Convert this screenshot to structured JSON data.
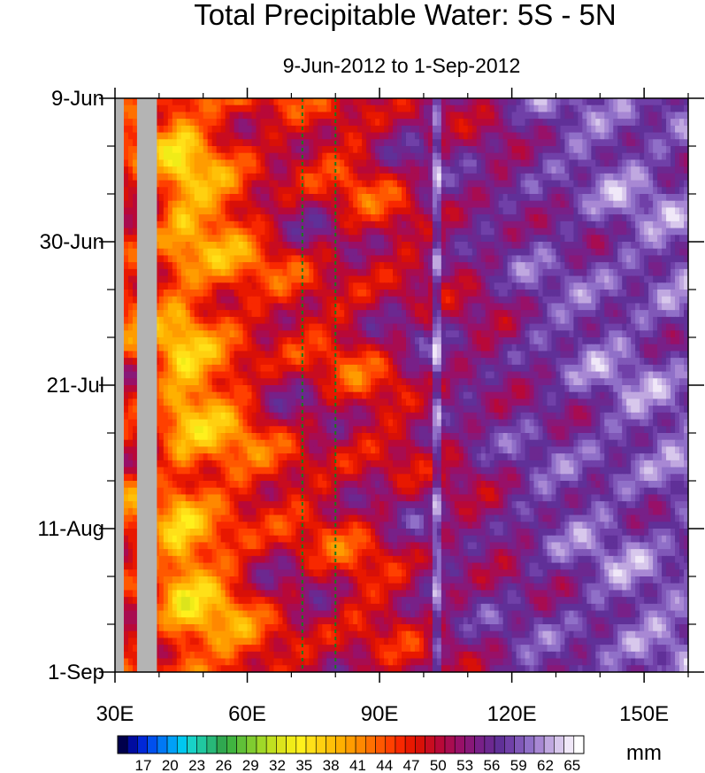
{
  "chart_data": {
    "type": "heatmap",
    "title": "Total Precipitable Water: 5S - 5N",
    "subtitle": "9-Jun-2012 to 1-Sep-2012",
    "x_range": [
      30,
      160
    ],
    "x_ticks": [
      {
        "value": 30,
        "label": "30E"
      },
      {
        "value": 60,
        "label": "60E"
      },
      {
        "value": 90,
        "label": "90E"
      },
      {
        "value": 120,
        "label": "120E"
      },
      {
        "value": 150,
        "label": "150E"
      }
    ],
    "y_range_days": [
      0,
      84
    ],
    "y_ticks": [
      {
        "day": 0,
        "label": "9-Jun"
      },
      {
        "day": 21,
        "label": "30-Jun"
      },
      {
        "day": 42,
        "label": "21-Jul"
      },
      {
        "day": 63,
        "label": "11-Aug"
      },
      {
        "day": 84,
        "label": "1-Sep"
      }
    ],
    "reference_lines_lon": [
      72.5,
      80
    ],
    "land_mask_lon": [
      32,
      35,
      39.5
    ],
    "colorbar": {
      "unit": "mm",
      "levels": [
        17,
        20,
        23,
        26,
        29,
        32,
        35,
        38,
        41,
        44,
        47,
        50,
        53,
        56,
        59,
        62,
        65
      ],
      "colors": [
        "#00004c",
        "#000ca0",
        "#0028d8",
        "#0050ee",
        "#0078f5",
        "#00a0f8",
        "#00c8f0",
        "#18d2c8",
        "#20c8a0",
        "#28b878",
        "#30a850",
        "#40b440",
        "#60c038",
        "#80cc30",
        "#a0d828",
        "#c0e020",
        "#dce41c",
        "#f0ec18",
        "#fff01c",
        "#ffe018",
        "#ffd010",
        "#ffc008",
        "#ffb000",
        "#ff9c00",
        "#ff8800",
        "#ff7000",
        "#ff5800",
        "#ff4000",
        "#f82800",
        "#e81800",
        "#d81008",
        "#c80c20",
        "#b80838",
        "#a80c50",
        "#981068",
        "#881878",
        "#782088",
        "#6c2890",
        "#603098",
        "#7040a8",
        "#8058b8",
        "#9070c8",
        "#a888d4",
        "#c0a8e0",
        "#d8c8ec",
        "#f0e8f8",
        "#ffffff"
      ]
    },
    "profile_by_lon": [
      {
        "lon": 30,
        "value": 48
      },
      {
        "lon": 40,
        "value": 45
      },
      {
        "lon": 45,
        "value": 40
      },
      {
        "lon": 55,
        "value": 44
      },
      {
        "lon": 65,
        "value": 49
      },
      {
        "lon": 75,
        "value": 50
      },
      {
        "lon": 85,
        "value": 49
      },
      {
        "lon": 95,
        "value": 51
      },
      {
        "lon": 100,
        "value": 53
      },
      {
        "lon": 110,
        "value": 54
      },
      {
        "lon": 118,
        "value": 55
      },
      {
        "lon": 125,
        "value": 57
      },
      {
        "lon": 135,
        "value": 58
      },
      {
        "lon": 145,
        "value": 59
      },
      {
        "lon": 160,
        "value": 59
      }
    ]
  }
}
